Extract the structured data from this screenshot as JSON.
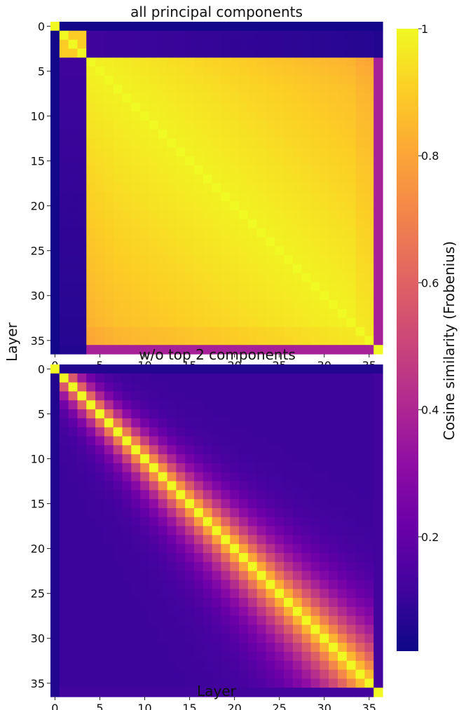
{
  "figure": {
    "shared_ylabel": "Layer",
    "shared_xlabel": "Layer"
  },
  "colorbar": {
    "label": "Cosine similarity (Frobenius)",
    "ticks": [
      0.2,
      0.4,
      0.6,
      0.8,
      1
    ],
    "tick_labels": [
      "0.2",
      "0.4",
      "0.6",
      "0.8",
      "1"
    ],
    "range": [
      0.02,
      1
    ],
    "colormap": "plasma"
  },
  "chart_data": [
    {
      "type": "heatmap",
      "title": "all principal components",
      "n": 37,
      "x_ticks": [
        0,
        5,
        10,
        15,
        20,
        25,
        30,
        35
      ],
      "y_ticks": [
        0,
        5,
        10,
        15,
        20,
        25,
        30,
        35
      ],
      "x_tick_labels": [
        "0",
        "5",
        "10",
        "15",
        "20",
        "25",
        "30",
        "35"
      ],
      "y_tick_labels": [
        "0",
        "5",
        "10",
        "15",
        "20",
        "25",
        "30",
        "35"
      ],
      "value_summary": {
        "diagonal": 1.0,
        "layer0_with_others": 0.03,
        "layers1to3_block": 0.9,
        "layers1to3_vs_4to35": 0.12,
        "layers4to35_block_range": [
          0.83,
          0.99
        ],
        "layer36_vs_4to35": 0.38,
        "layer36_vs_1to3": 0.06
      }
    },
    {
      "type": "heatmap",
      "title": "w/o top 2 components",
      "n": 37,
      "x_ticks": [
        0,
        5,
        10,
        15,
        20,
        25,
        30,
        35
      ],
      "y_ticks": [
        0,
        5,
        10,
        15,
        20,
        25,
        30,
        35
      ],
      "x_tick_labels": [
        "0",
        "5",
        "10",
        "15",
        "20",
        "25",
        "30",
        "35"
      ],
      "y_tick_labels": [
        "0",
        "5",
        "10",
        "15",
        "20",
        "25",
        "30",
        "35"
      ],
      "value_summary": {
        "diagonal": 1.0,
        "layer0_with_others": 0.06,
        "off_diagonal_decay": "similarity decreases with layer distance; band widens for deeper layers",
        "far_off_diagonal": 0.15,
        "layer36_with_others": 0.12
      }
    }
  ]
}
